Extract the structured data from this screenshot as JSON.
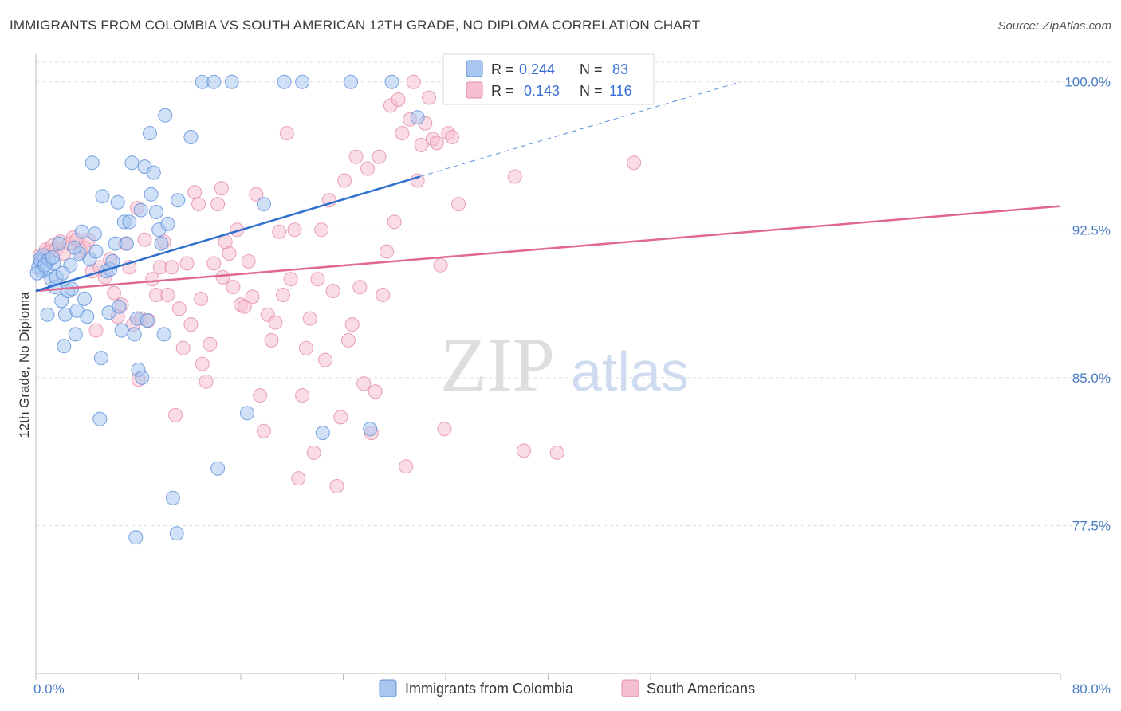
{
  "header": {
    "title": "IMMIGRANTS FROM COLOMBIA VS SOUTH AMERICAN 12TH GRADE, NO DIPLOMA CORRELATION CHART",
    "source": "Source: ZipAtlas.com"
  },
  "watermark": {
    "zip": "ZIP",
    "atlas": "atlas"
  },
  "colors": {
    "blue_fill": "#a8c6f0",
    "blue_stroke": "#5b8fd8",
    "blue_line": "#2f6fce",
    "pink_fill": "#f6bfd0",
    "pink_stroke": "#e48aa8",
    "pink_line": "#e06890",
    "grid": "#dddddd",
    "tick_text": "#4a7cc4"
  },
  "legend": {
    "r_label": "R =",
    "n_label": "N =",
    "rows": [
      {
        "r": "0.244",
        "n": "83",
        "color": "blue"
      },
      {
        "r": "0.143",
        "n": "116",
        "color": "pink"
      }
    ]
  },
  "chart_data": {
    "type": "scatter",
    "title": "IMMIGRANTS FROM COLOMBIA VS SOUTH AMERICAN 12TH GRADE, NO DIPLOMA CORRELATION CHART",
    "xlabel": "",
    "ylabel": "12th Grade, No Diploma",
    "xlim": [
      0,
      80
    ],
    "ylim": [
      70,
      101
    ],
    "x_tick_labels": [
      "0.0%",
      "80.0%"
    ],
    "y_ticks": [
      77.5,
      85.0,
      92.5,
      100.0
    ],
    "y_tick_labels": [
      "77.5%",
      "85.0%",
      "92.5%",
      "100.0%"
    ],
    "grid": true,
    "legend_position": "top-center",
    "series": [
      {
        "name": "Immigrants from Colombia",
        "color": "blue",
        "trend": {
          "x": [
            0,
            30
          ],
          "y": [
            89.4,
            95.2
          ]
        },
        "trend_dashed": {
          "x": [
            30,
            55
          ],
          "y": [
            95.2,
            100.0
          ]
        },
        "points": [
          [
            0.2,
            90.6
          ],
          [
            0.3,
            91.0
          ],
          [
            0.4,
            90.9
          ],
          [
            0.5,
            90.4
          ],
          [
            0.6,
            91.2
          ],
          [
            0.8,
            90.5
          ],
          [
            0.9,
            88.2
          ],
          [
            1.0,
            91.0
          ],
          [
            1.2,
            90.0
          ],
          [
            1.4,
            90.8
          ],
          [
            1.5,
            89.6
          ],
          [
            1.6,
            90.1
          ],
          [
            1.8,
            91.8
          ],
          [
            2.0,
            88.9
          ],
          [
            2.2,
            86.6
          ],
          [
            2.3,
            88.2
          ],
          [
            2.5,
            89.4
          ],
          [
            2.7,
            90.7
          ],
          [
            2.8,
            89.5
          ],
          [
            3.1,
            87.2
          ],
          [
            3.2,
            88.4
          ],
          [
            3.4,
            91.3
          ],
          [
            3.6,
            92.4
          ],
          [
            3.8,
            89.0
          ],
          [
            4.0,
            88.1
          ],
          [
            4.2,
            91.0
          ],
          [
            4.4,
            95.9
          ],
          [
            4.6,
            92.3
          ],
          [
            4.7,
            91.4
          ],
          [
            5.0,
            82.9
          ],
          [
            5.1,
            86.0
          ],
          [
            5.2,
            94.2
          ],
          [
            5.5,
            90.4
          ],
          [
            5.7,
            88.3
          ],
          [
            5.8,
            90.5
          ],
          [
            6.0,
            90.9
          ],
          [
            6.2,
            91.8
          ],
          [
            6.4,
            93.9
          ],
          [
            6.5,
            88.6
          ],
          [
            6.7,
            87.4
          ],
          [
            6.9,
            92.9
          ],
          [
            7.1,
            91.8
          ],
          [
            7.3,
            92.9
          ],
          [
            7.5,
            95.9
          ],
          [
            7.7,
            87.2
          ],
          [
            7.9,
            88.0
          ],
          [
            7.8,
            76.9
          ],
          [
            8.0,
            85.4
          ],
          [
            8.2,
            93.5
          ],
          [
            8.3,
            85.0
          ],
          [
            8.5,
            95.7
          ],
          [
            8.7,
            87.9
          ],
          [
            8.9,
            97.4
          ],
          [
            9.0,
            94.3
          ],
          [
            9.2,
            95.4
          ],
          [
            9.4,
            93.4
          ],
          [
            9.6,
            92.5
          ],
          [
            9.8,
            91.8
          ],
          [
            10.0,
            87.2
          ],
          [
            10.1,
            98.3
          ],
          [
            10.3,
            92.8
          ],
          [
            10.7,
            78.9
          ],
          [
            11.0,
            77.1
          ],
          [
            11.1,
            94.0
          ],
          [
            12.1,
            97.2
          ],
          [
            13.0,
            100.0
          ],
          [
            13.9,
            100.0
          ],
          [
            14.2,
            80.4
          ],
          [
            15.3,
            100.0
          ],
          [
            16.5,
            83.2
          ],
          [
            17.8,
            93.8
          ],
          [
            19.4,
            100.0
          ],
          [
            20.8,
            100.0
          ],
          [
            22.4,
            82.2
          ],
          [
            24.6,
            100.0
          ],
          [
            26.1,
            82.4
          ],
          [
            27.8,
            100.0
          ],
          [
            29.8,
            98.2
          ],
          [
            0.1,
            90.3
          ],
          [
            0.7,
            90.7
          ],
          [
            1.3,
            91.1
          ],
          [
            2.1,
            90.3
          ],
          [
            3.0,
            91.6
          ]
        ]
      },
      {
        "name": "South Americans",
        "color": "pink",
        "trend": {
          "x": [
            0,
            80
          ],
          "y": [
            89.4,
            93.7
          ]
        },
        "points": [
          [
            0.3,
            91.2
          ],
          [
            0.5,
            91.0
          ],
          [
            0.8,
            91.5
          ],
          [
            1.0,
            91.4
          ],
          [
            1.3,
            91.7
          ],
          [
            1.6,
            91.5
          ],
          [
            1.9,
            91.9
          ],
          [
            2.2,
            91.3
          ],
          [
            2.6,
            91.8
          ],
          [
            2.9,
            92.1
          ],
          [
            3.2,
            92.0
          ],
          [
            3.5,
            91.4
          ],
          [
            3.8,
            91.6
          ],
          [
            4.1,
            92.0
          ],
          [
            4.4,
            90.4
          ],
          [
            4.7,
            87.4
          ],
          [
            5.0,
            90.6
          ],
          [
            5.4,
            90.1
          ],
          [
            5.8,
            91.0
          ],
          [
            6.1,
            89.3
          ],
          [
            6.4,
            88.1
          ],
          [
            6.7,
            88.7
          ],
          [
            7.0,
            91.8
          ],
          [
            7.3,
            90.6
          ],
          [
            7.6,
            87.7
          ],
          [
            7.9,
            93.6
          ],
          [
            8.2,
            88.0
          ],
          [
            8.5,
            92.0
          ],
          [
            8.8,
            87.9
          ],
          [
            9.1,
            90.0
          ],
          [
            9.4,
            89.2
          ],
          [
            9.7,
            90.6
          ],
          [
            10.0,
            91.9
          ],
          [
            10.3,
            89.2
          ],
          [
            10.6,
            90.6
          ],
          [
            10.9,
            83.1
          ],
          [
            11.2,
            88.5
          ],
          [
            11.5,
            86.5
          ],
          [
            11.8,
            90.8
          ],
          [
            12.1,
            87.7
          ],
          [
            12.4,
            94.4
          ],
          [
            12.7,
            93.8
          ],
          [
            13.0,
            85.7
          ],
          [
            13.3,
            84.8
          ],
          [
            13.6,
            86.7
          ],
          [
            13.9,
            90.8
          ],
          [
            14.2,
            93.8
          ],
          [
            14.5,
            94.6
          ],
          [
            14.8,
            91.9
          ],
          [
            15.1,
            91.3
          ],
          [
            15.4,
            89.6
          ],
          [
            15.7,
            92.5
          ],
          [
            16.0,
            88.7
          ],
          [
            16.3,
            88.6
          ],
          [
            16.6,
            90.9
          ],
          [
            16.9,
            89.1
          ],
          [
            17.2,
            94.3
          ],
          [
            17.5,
            84.1
          ],
          [
            17.8,
            82.3
          ],
          [
            18.1,
            88.2
          ],
          [
            18.4,
            86.9
          ],
          [
            18.7,
            87.8
          ],
          [
            19.0,
            92.4
          ],
          [
            19.3,
            89.2
          ],
          [
            19.6,
            97.4
          ],
          [
            19.9,
            90.0
          ],
          [
            20.2,
            92.5
          ],
          [
            20.5,
            79.9
          ],
          [
            20.8,
            84.1
          ],
          [
            21.1,
            86.5
          ],
          [
            21.4,
            88.0
          ],
          [
            21.7,
            81.2
          ],
          [
            22.0,
            90.0
          ],
          [
            22.3,
            92.5
          ],
          [
            22.6,
            85.9
          ],
          [
            22.9,
            94.0
          ],
          [
            23.2,
            89.4
          ],
          [
            23.5,
            79.5
          ],
          [
            23.8,
            83.0
          ],
          [
            24.1,
            95.0
          ],
          [
            24.4,
            86.9
          ],
          [
            24.7,
            87.7
          ],
          [
            25.0,
            96.2
          ],
          [
            25.3,
            89.6
          ],
          [
            25.6,
            84.7
          ],
          [
            25.9,
            95.6
          ],
          [
            26.2,
            82.2
          ],
          [
            26.5,
            84.3
          ],
          [
            26.8,
            96.2
          ],
          [
            27.1,
            89.2
          ],
          [
            27.4,
            91.4
          ],
          [
            27.7,
            98.8
          ],
          [
            28.0,
            92.9
          ],
          [
            28.3,
            99.1
          ],
          [
            28.6,
            97.4
          ],
          [
            28.9,
            80.5
          ],
          [
            29.2,
            98.1
          ],
          [
            29.5,
            100.0
          ],
          [
            29.8,
            95.0
          ],
          [
            30.1,
            96.8
          ],
          [
            30.4,
            97.9
          ],
          [
            30.7,
            99.2
          ],
          [
            31.0,
            97.1
          ],
          [
            31.3,
            96.9
          ],
          [
            31.6,
            90.7
          ],
          [
            31.9,
            82.4
          ],
          [
            32.2,
            97.4
          ],
          [
            32.5,
            97.2
          ],
          [
            33.0,
            93.8
          ],
          [
            37.4,
            95.2
          ],
          [
            38.1,
            81.3
          ],
          [
            40.7,
            81.2
          ],
          [
            46.7,
            95.9
          ],
          [
            8.0,
            84.9
          ],
          [
            12.9,
            89.0
          ],
          [
            14.6,
            90.1
          ]
        ]
      }
    ]
  },
  "bottom_legend": [
    {
      "label": "Immigrants from Colombia",
      "color": "blue"
    },
    {
      "label": "South Americans",
      "color": "pink"
    }
  ]
}
